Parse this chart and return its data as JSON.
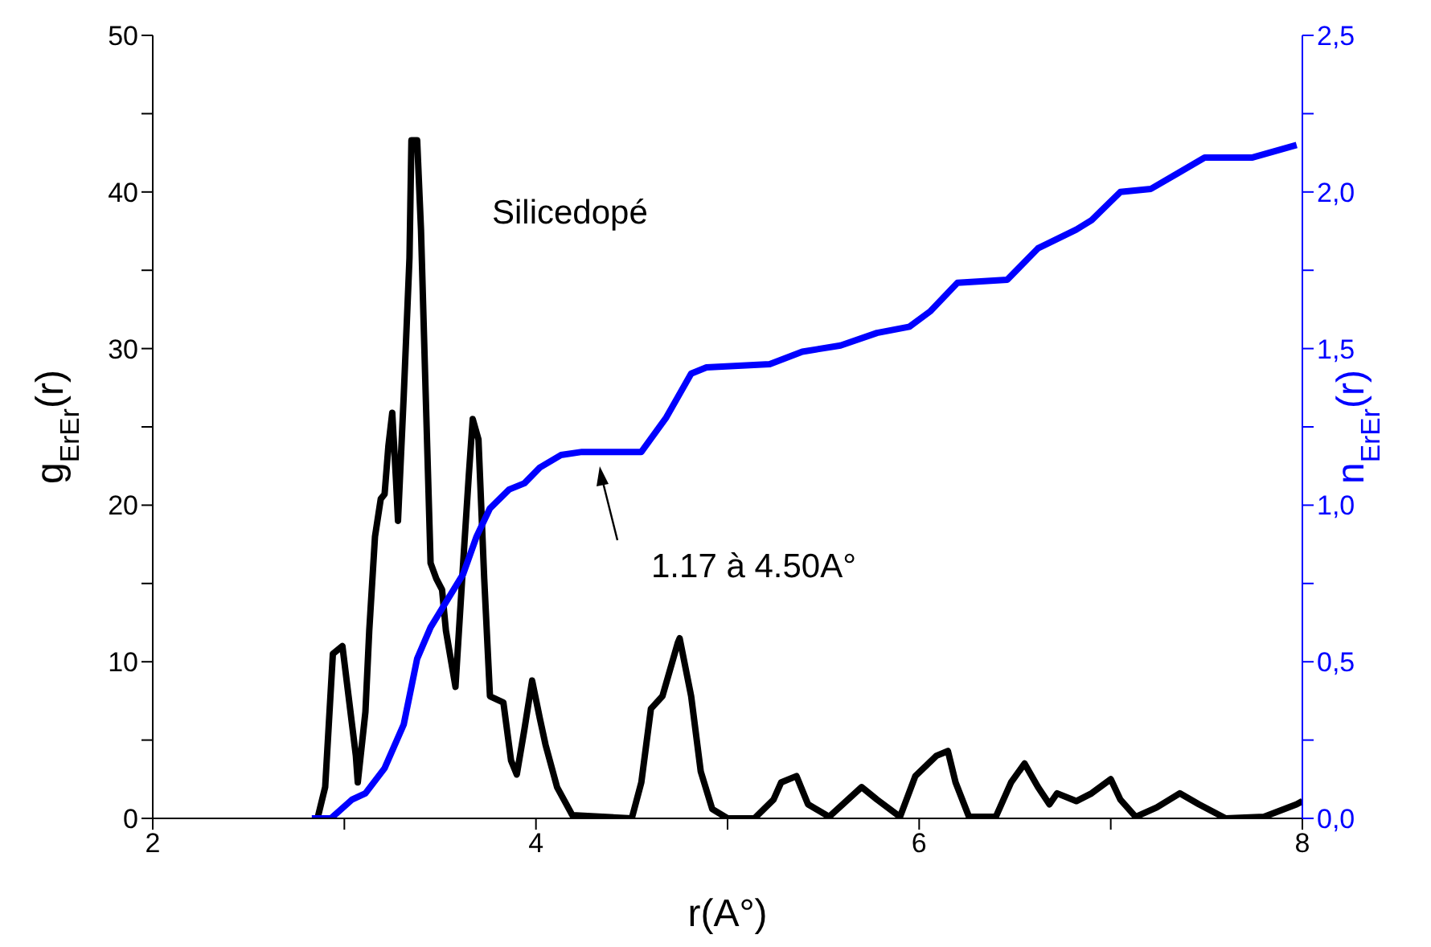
{
  "chart_data": {
    "type": "line",
    "xlabel": "r(A°)",
    "ylabel": "g$_{ErEr}$(r)",
    "y2label": "n$_{ErEr}$(r)",
    "xlim": [
      2,
      8
    ],
    "xticks": [
      2,
      {
        "value": 3,
        "label": null
      },
      4,
      {
        "value": 5,
        "label": null
      },
      6,
      {
        "value": 7,
        "label": null
      },
      8
    ],
    "ylim": [
      0,
      50
    ],
    "yticks": [
      0,
      {
        "value": 5,
        "label": null
      },
      10,
      {
        "value": 15,
        "label": null
      },
      20,
      {
        "value": 25,
        "label": null
      },
      30,
      {
        "value": 35,
        "label": null
      },
      40,
      {
        "value": 45,
        "label": null
      },
      50
    ],
    "y2lim": [
      0,
      2.5
    ],
    "y2ticks": [
      {
        "value": 0,
        "label": "0,0"
      },
      {
        "value": 0.25,
        "label": null
      },
      {
        "value": 0.5,
        "label": "0,5"
      },
      {
        "value": 0.75,
        "label": null
      },
      {
        "value": 1,
        "label": "1,0"
      },
      {
        "value": 1.25,
        "label": null
      },
      {
        "value": 1.5,
        "label": "1,5"
      },
      {
        "value": 1.75,
        "label": null
      },
      {
        "value": 2,
        "label": "2,0"
      },
      {
        "value": 2.25,
        "label": null
      },
      {
        "value": 2.5,
        "label": "2,5"
      }
    ],
    "series": [
      {
        "color": "#000000",
        "x": [
          2.86,
          2.9,
          2.94,
          2.99,
          3.06,
          3.07,
          3.11,
          3.13,
          3.16,
          3.19,
          3.21,
          3.23,
          3.25,
          3.27,
          3.28,
          3.31,
          3.34,
          3.35,
          3.38,
          3.4,
          3.42,
          3.45,
          3.48,
          3.51,
          3.53,
          3.58,
          3.62,
          3.65,
          3.67,
          3.7,
          3.73,
          3.76,
          3.83,
          3.87,
          3.9,
          3.94,
          3.98,
          4.02,
          4.05,
          4.11,
          4.19,
          4.5,
          4.55,
          4.6,
          4.66,
          4.74,
          4.75,
          4.81,
          4.86,
          4.92,
          5.0,
          5.14,
          5.24,
          5.28,
          5.36,
          5.42,
          5.53,
          5.7,
          5.78,
          5.9,
          5.98,
          6.09,
          6.15,
          6.19,
          6.26,
          6.4,
          6.48,
          6.55,
          6.62,
          6.68,
          6.72,
          6.82,
          6.9,
          7.0,
          7.05,
          7.13,
          7.24,
          7.36,
          7.46,
          7.6,
          7.8,
          7.97,
          8.0
        ],
        "values": [
          0,
          2,
          10.5,
          11,
          4,
          2.3,
          6.8,
          12,
          18,
          20.4,
          20.7,
          23.8,
          25.9,
          21.5,
          19,
          27,
          35.8,
          43.3,
          43.3,
          37.6,
          29,
          16.3,
          15.3,
          14.6,
          12,
          8.4,
          16.3,
          22,
          25.5,
          24.2,
          15.3,
          7.8,
          7.4,
          3.7,
          2.8,
          5.7,
          8.8,
          6.4,
          4.7,
          2,
          0.2,
          0,
          2.3,
          7,
          7.8,
          11.2,
          11.5,
          7.8,
          3,
          0.6,
          0,
          0,
          1.2,
          2.3,
          2.7,
          0.9,
          0.1,
          2,
          1.2,
          0.1,
          2.7,
          4,
          4.3,
          2.3,
          0.1,
          0.1,
          2.3,
          3.5,
          2,
          0.9,
          1.6,
          1.1,
          1.6,
          2.5,
          1.2,
          0.1,
          0.7,
          1.6,
          0.9,
          0,
          0.1,
          0.9,
          1.1
        ]
      },
      {
        "color": "#0000ff",
        "axis": "y2",
        "x": [
          2.83,
          2.93,
          3.04,
          3.11,
          3.21,
          3.31,
          3.38,
          3.45,
          3.55,
          3.62,
          3.69,
          3.76,
          3.86,
          3.94,
          4.02,
          4.13,
          4.24,
          4.53,
          4.55,
          4.68,
          4.81,
          4.89,
          5.22,
          5.39,
          5.59,
          5.78,
          5.95,
          6.06,
          6.2,
          6.46,
          6.62,
          6.82,
          6.9,
          7.05,
          7.21,
          7.35,
          7.49,
          7.74,
          7.97
        ],
        "values": [
          0,
          0,
          0.06,
          0.08,
          0.16,
          0.3,
          0.51,
          0.61,
          0.71,
          0.78,
          0.9,
          0.99,
          1.05,
          1.07,
          1.12,
          1.16,
          1.17,
          1.17,
          1.17,
          1.28,
          1.42,
          1.44,
          1.45,
          1.49,
          1.51,
          1.55,
          1.57,
          1.62,
          1.71,
          1.72,
          1.82,
          1.88,
          1.91,
          2.0,
          2.01,
          2.06,
          2.11,
          2.11,
          2.15
        ]
      }
    ],
    "annotations": [
      "Silicedopé",
      "1.17 à 4.50A°"
    ],
    "legend": false
  }
}
